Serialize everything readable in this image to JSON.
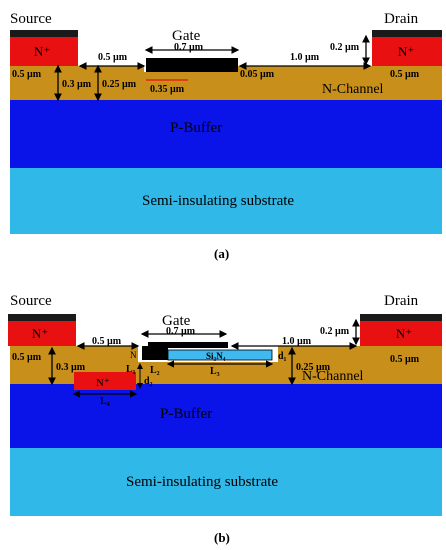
{
  "panel_a": {
    "label": "(a)",
    "source": "Source",
    "drain": "Drain",
    "gate": "Gate",
    "nplus": "N⁺",
    "n_channel": "N-Channel",
    "p_buffer": "P-Buffer",
    "substrate": "Semi-insulating substrate",
    "dims": {
      "gate_len": "0.7 µm",
      "gs_spacing": "0.5 µm",
      "gd_spacing": "1.0 µm",
      "drain_cap": "0.2 µm",
      "left_depth": "0.5 µm",
      "depth_03": "0.3 µm",
      "depth_025": "0.25 µm",
      "recess_005": "0.05 µm",
      "recess_035": "0.35 µm",
      "right_depth": "0.5 µm"
    }
  },
  "panel_b": {
    "label": "(b)",
    "source": "Source",
    "drain": "Drain",
    "gate": "Gate",
    "nplus": "N⁺",
    "n_channel": "N-Channel",
    "p_buffer": "P-Buffer",
    "substrate": "Semi-insulating substrate",
    "sin": "Si₃N₄",
    "n_mark": "N",
    "dims": {
      "gate_len": "0.7 µm",
      "gs_spacing": "0.5 µm",
      "gd_spacing": "1.0 µm",
      "drain_cap": "0.2 µm",
      "left_depth": "0.5 µm",
      "depth_03": "0.3 µm",
      "depth_025": "0.25 µm",
      "right_depth": "0.5 µm",
      "d1": "d₁",
      "d2": "d₂",
      "l1": "L₁",
      "l2": "L₂",
      "l3": "L₃",
      "l4": "L₄"
    }
  },
  "colors": {
    "contact": "#1a1a1a",
    "nplus": "#e81010",
    "n_channel": "#c8901a",
    "p_buffer": "#0a14e8",
    "substrate": "#30b8e8",
    "sin": "#40b8f0",
    "gate": "#000000"
  }
}
